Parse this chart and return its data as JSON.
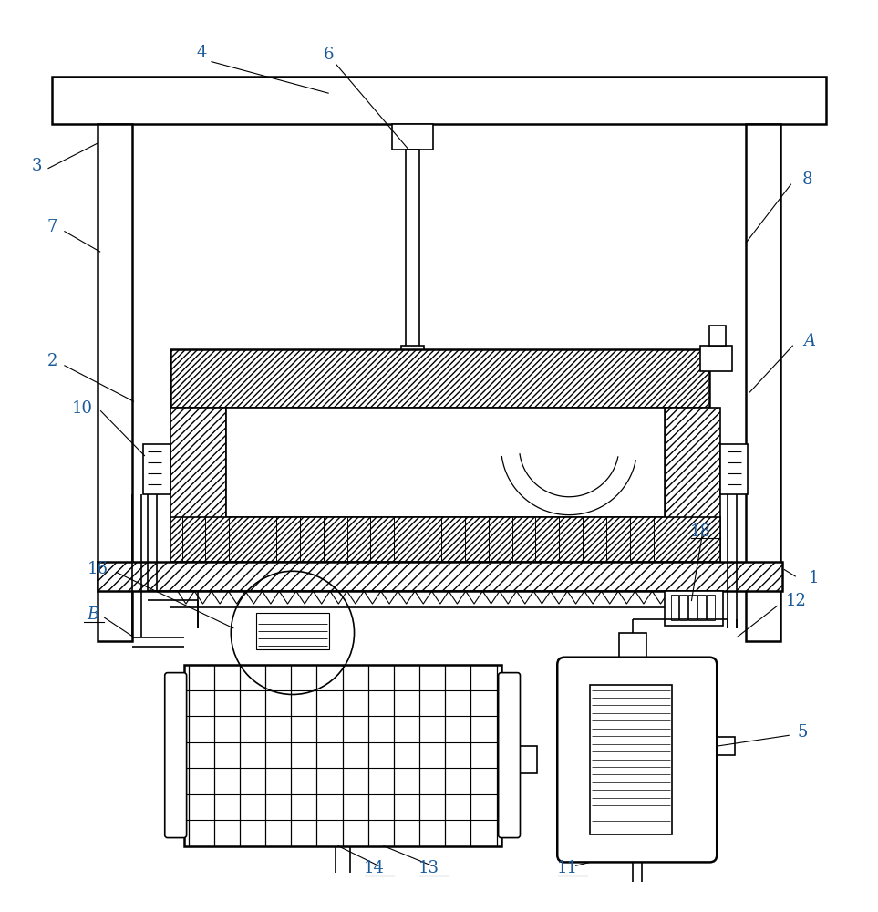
{
  "bg_color": "#ffffff",
  "line_color": "#000000",
  "label_color": "#1a5a9a",
  "fig_width": 9.63,
  "fig_height": 10.0,
  "lw": 1.2,
  "lw2": 1.8,
  "lw_thin": 0.7
}
